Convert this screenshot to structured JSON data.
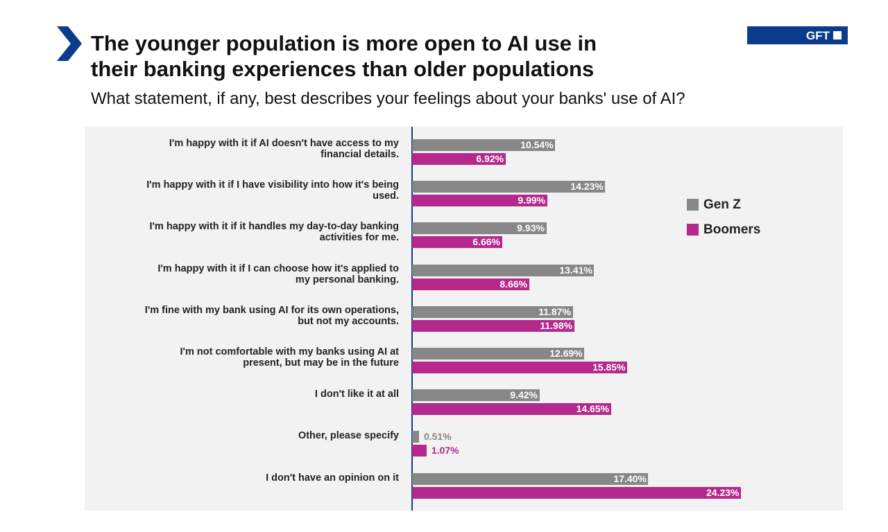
{
  "logo": "GFT",
  "chart_data": {
    "type": "bar",
    "orientation": "horizontal",
    "title": "The younger population is more open to AI use in their banking experiences than older populations",
    "subtitle": "What statement, if any, best describes your feelings about your banks' use of AI?",
    "categories": [
      "I'm happy with it if AI doesn't have access to my financial details.",
      "I'm happy with it if I have visibility into how it's being used.",
      "I'm happy with it if it handles my day-to-day banking activities for me.",
      "I'm happy with it if I can choose how it's applied to my personal banking.",
      "I'm fine with my bank using AI for its own operations, but not my accounts.",
      "I'm not comfortable with my banks using AI at present, but may be in the future",
      "I don't like it at all",
      "Other, please specify",
      "I don't have an opinion on it"
    ],
    "series": [
      {
        "name": "Gen Z",
        "color": "#878787",
        "values": [
          10.54,
          14.23,
          9.93,
          13.41,
          11.87,
          12.69,
          9.42,
          0.51,
          17.4
        ],
        "value_labels": [
          "10.54%",
          "14.23%",
          "9.93%",
          "13.41%",
          "11.87%",
          "12.69%",
          "9.42%",
          "0.51%",
          "17.40%"
        ]
      },
      {
        "name": "Boomers",
        "color": "#b5288c",
        "values": [
          6.92,
          9.99,
          6.66,
          8.66,
          11.98,
          15.85,
          14.65,
          1.07,
          24.23
        ],
        "value_labels": [
          "6.92%",
          "9.99%",
          "6.66%",
          "8.66%",
          "11.98%",
          "15.85%",
          "14.65%",
          "1.07%",
          "24.23%"
        ]
      }
    ]
  }
}
